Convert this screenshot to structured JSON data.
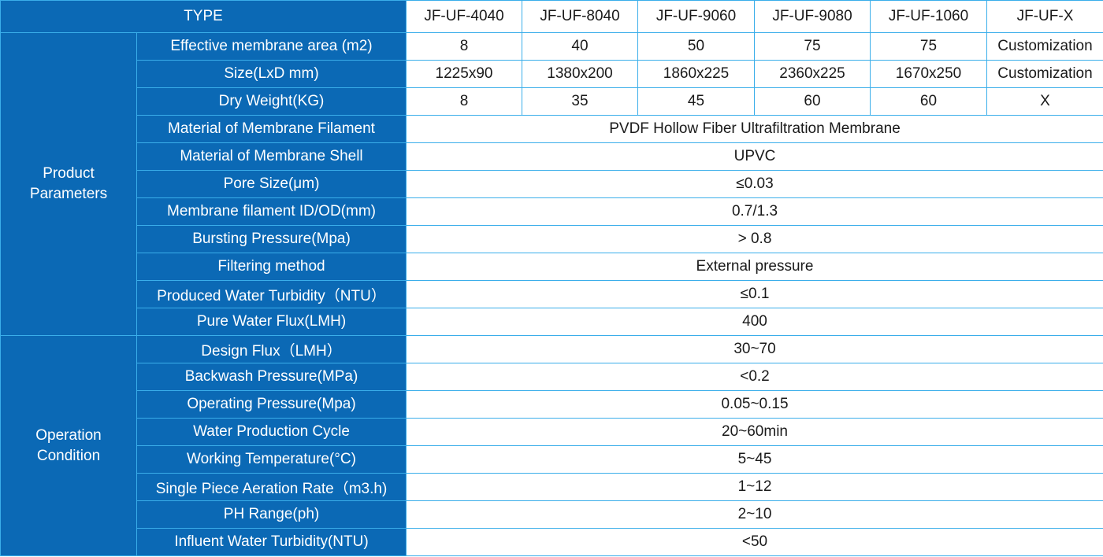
{
  "header": {
    "type": "TYPE",
    "models": [
      "JF-UF-4040",
      "JF-UF-8040",
      "JF-UF-9060",
      "JF-UF-9080",
      "JF-UF-1060",
      "JF-UF-X"
    ]
  },
  "groups": [
    {
      "label": "Product Parameters",
      "rows": [
        {
          "label": "Effective membrane area (m2)",
          "values": [
            "8",
            "40",
            "50",
            "75",
            "75",
            "Customization"
          ]
        },
        {
          "label": "Size(LxD mm)",
          "values": [
            "1225x90",
            "1380x200",
            "1860x225",
            "2360x225",
            "1670x250",
            "Customization"
          ]
        },
        {
          "label": "Dry Weight(KG)",
          "values": [
            "8",
            "35",
            "45",
            "60",
            "60",
            "X"
          ]
        },
        {
          "label": "Material of Membrane Filament",
          "values": [
            "PVDF Hollow Fiber Ultrafiltration Membrane"
          ]
        },
        {
          "label": "Material of Membrane Shell",
          "values": [
            "UPVC"
          ]
        },
        {
          "label": "Pore Size(μm)",
          "values": [
            "≤0.03"
          ]
        },
        {
          "label": "Membrane filament ID/OD(mm)",
          "values": [
            "0.7/1.3"
          ]
        },
        {
          "label": "Bursting Pressure(Mpa)",
          "values": [
            "> 0.8"
          ]
        },
        {
          "label": "Filtering method",
          "values": [
            "External pressure"
          ]
        },
        {
          "label": "Produced Water Turbidity（NTU）",
          "values": [
            "≤0.1"
          ]
        },
        {
          "label": "Pure Water Flux(LMH)",
          "values": [
            "400"
          ]
        }
      ]
    },
    {
      "label": "Operation Condition",
      "rows": [
        {
          "label": "Design Flux（LMH）",
          "values": [
            "30~70"
          ]
        },
        {
          "label": "Backwash Pressure(MPa)",
          "values": [
            "<0.2"
          ]
        },
        {
          "label": "Operating Pressure(Mpa)",
          "values": [
            "0.05~0.15"
          ]
        },
        {
          "label": "Water Production Cycle",
          "values": [
            "20~60min"
          ]
        },
        {
          "label": "Working Temperature(°C)",
          "values": [
            "5~45"
          ]
        },
        {
          "label": "Single Piece Aeration Rate（m3.h)",
          "values": [
            "1~12"
          ]
        },
        {
          "label": "PH Range(ph)",
          "values": [
            "2~10"
          ]
        },
        {
          "label": "Influent Water Turbidity(NTU)",
          "values": [
            "<50"
          ]
        }
      ]
    }
  ]
}
